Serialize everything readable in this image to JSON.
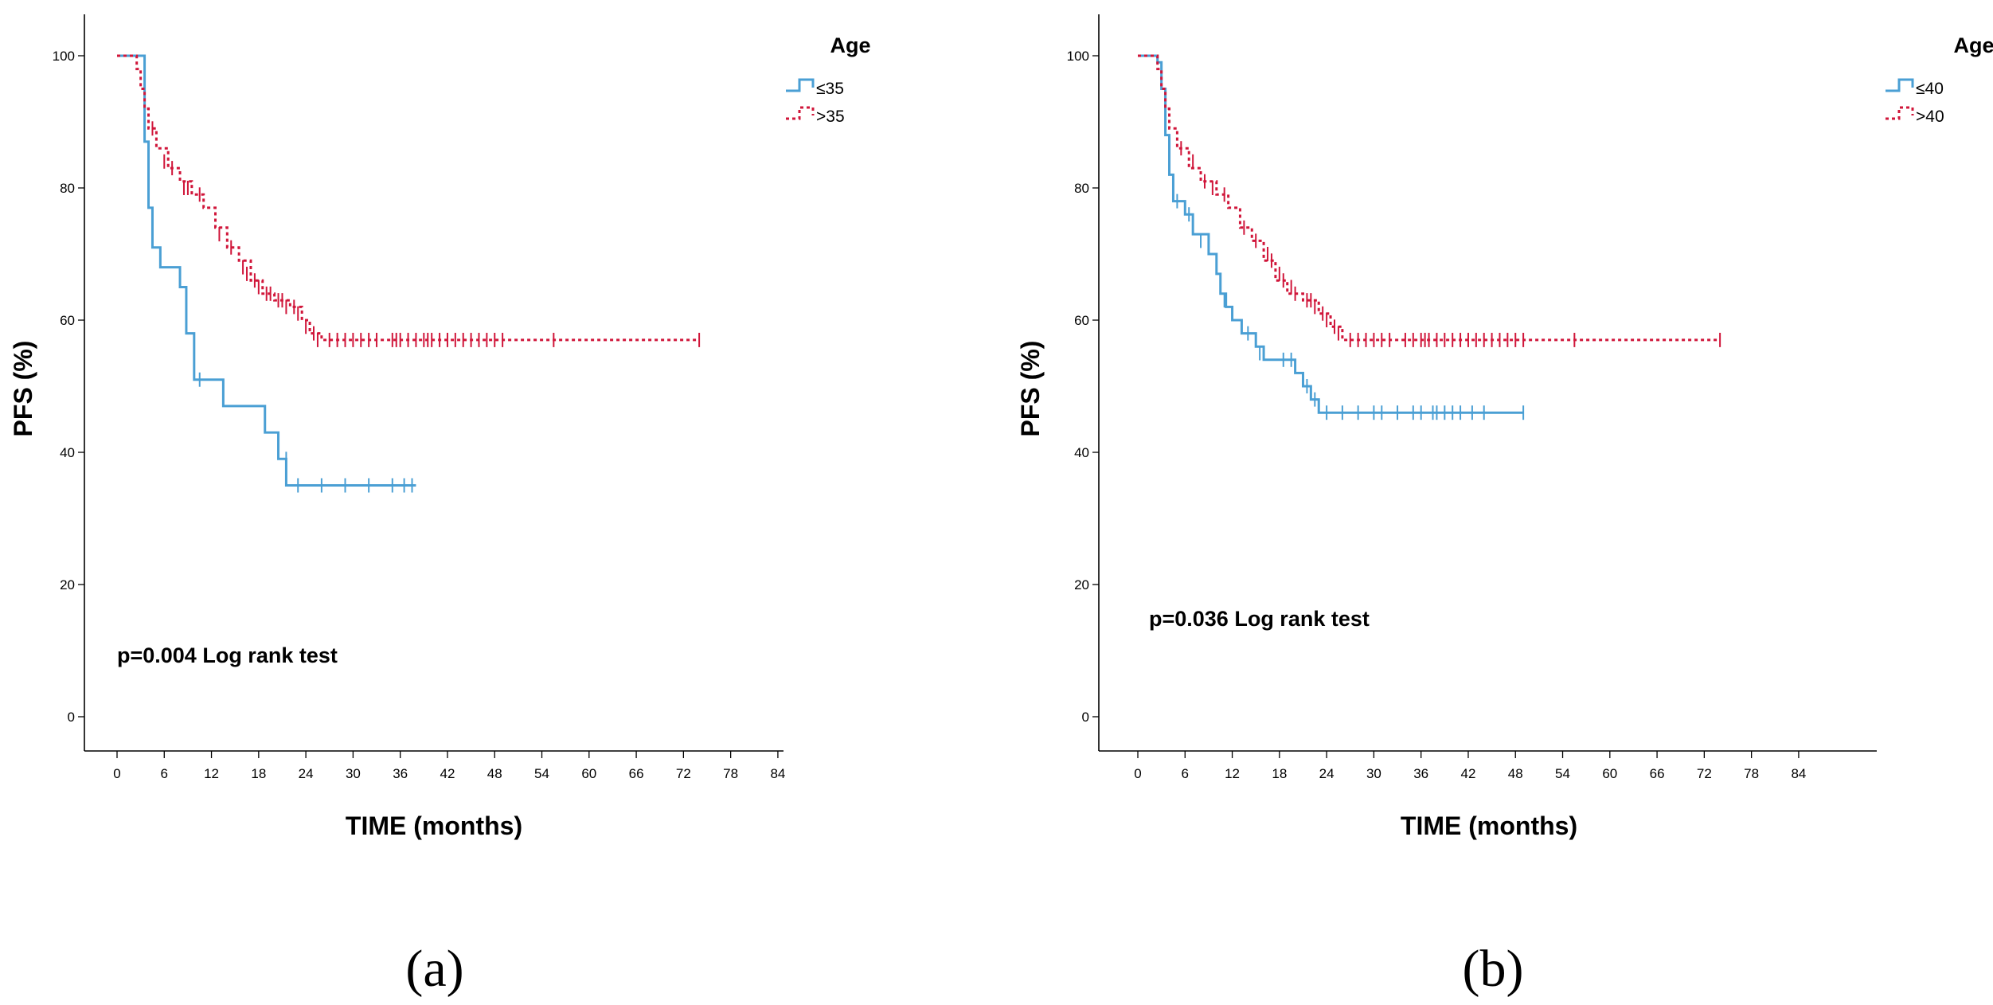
{
  "chart_data": [
    {
      "type": "line",
      "subtype": "kaplan-meier",
      "panel_label": "(a)",
      "xlabel": "TIME (months)",
      "ylabel": "PFS (%)",
      "xlim": [
        0,
        84
      ],
      "ylim": [
        0,
        100
      ],
      "xticks": [
        "0",
        "6",
        "12",
        "18",
        "24",
        "30",
        "36",
        "42",
        "48",
        "54",
        "60",
        "66",
        "72",
        "78",
        "84"
      ],
      "yticks": [
        "0",
        "20",
        "40",
        "60",
        "80",
        "100"
      ],
      "grid": false,
      "legend": {
        "title": "Age",
        "position": "top-right"
      },
      "annotation": "p=0.004 Log rank test",
      "series": [
        {
          "name": "≤35",
          "color": "#4a9fd4",
          "style": "solid",
          "steps": [
            [
              0,
              100
            ],
            [
              3,
              100
            ],
            [
              3.5,
              87
            ],
            [
              4,
              77
            ],
            [
              4.5,
              71
            ],
            [
              5.5,
              68
            ],
            [
              8,
              65
            ],
            [
              8.8,
              58
            ],
            [
              9.8,
              51
            ],
            [
              13.5,
              47
            ],
            [
              18,
              47
            ],
            [
              18.8,
              43
            ],
            [
              20.5,
              39
            ],
            [
              21.5,
              35
            ],
            [
              38,
              35
            ]
          ],
          "censored": [
            [
              10.5,
              51
            ],
            [
              21.5,
              39
            ],
            [
              23,
              35
            ],
            [
              26,
              35
            ],
            [
              29,
              35
            ],
            [
              32,
              35
            ],
            [
              35,
              35
            ],
            [
              36.5,
              35
            ],
            [
              37.5,
              35
            ]
          ]
        },
        {
          "name": ">35",
          "color": "#d0163a",
          "style": "dotted",
          "steps": [
            [
              0,
              100
            ],
            [
              2,
              100
            ],
            [
              2.5,
              98
            ],
            [
              3,
              95
            ],
            [
              3.5,
              92
            ],
            [
              4,
              89
            ],
            [
              5,
              86
            ],
            [
              6.5,
              83
            ],
            [
              8,
              81
            ],
            [
              9.5,
              79
            ],
            [
              11,
              77
            ],
            [
              12.5,
              74
            ],
            [
              14,
              71
            ],
            [
              15.5,
              69
            ],
            [
              17,
              66
            ],
            [
              18.5,
              64
            ],
            [
              20,
              63
            ],
            [
              22,
              62
            ],
            [
              23.5,
              60
            ],
            [
              24.5,
              58
            ],
            [
              26,
              57
            ],
            [
              74,
              57
            ]
          ],
          "censored": [
            [
              4.5,
              89
            ],
            [
              6,
              84
            ],
            [
              7,
              83
            ],
            [
              8.5,
              80
            ],
            [
              9,
              80
            ],
            [
              10.5,
              79
            ],
            [
              13,
              73
            ],
            [
              14.5,
              71
            ],
            [
              16,
              68
            ],
            [
              16.5,
              67
            ],
            [
              17.5,
              66
            ],
            [
              18,
              65
            ],
            [
              19,
              64
            ],
            [
              19.5,
              64
            ],
            [
              20.5,
              63
            ],
            [
              21,
              63
            ],
            [
              21.5,
              62
            ],
            [
              22.5,
              62
            ],
            [
              23,
              61
            ],
            [
              24,
              59
            ],
            [
              25,
              58
            ],
            [
              25.5,
              57
            ],
            [
              27,
              57
            ],
            [
              28,
              57
            ],
            [
              29,
              57
            ],
            [
              30,
              57
            ],
            [
              31,
              57
            ],
            [
              32,
              57
            ],
            [
              33,
              57
            ],
            [
              35,
              57
            ],
            [
              35.5,
              57
            ],
            [
              36,
              57
            ],
            [
              37,
              57
            ],
            [
              38,
              57
            ],
            [
              39,
              57
            ],
            [
              39.5,
              57
            ],
            [
              40,
              57
            ],
            [
              41,
              57
            ],
            [
              42,
              57
            ],
            [
              43,
              57
            ],
            [
              44,
              57
            ],
            [
              45,
              57
            ],
            [
              46,
              57
            ],
            [
              47,
              57
            ],
            [
              48,
              57
            ],
            [
              49,
              57
            ],
            [
              55.5,
              57
            ],
            [
              74,
              57
            ]
          ]
        }
      ]
    },
    {
      "type": "line",
      "subtype": "kaplan-meier",
      "panel_label": "(b)",
      "xlabel": "TIME (months)",
      "ylabel": "PFS (%)",
      "xlim": [
        0,
        84
      ],
      "ylim": [
        0,
        100
      ],
      "xticks": [
        "0",
        "6",
        "12",
        "18",
        "24",
        "30",
        "36",
        "42",
        "48",
        "54",
        "60",
        "66",
        "72",
        "78",
        "84"
      ],
      "yticks": [
        "0",
        "20",
        "40",
        "60",
        "80",
        "100"
      ],
      "grid": false,
      "legend": {
        "title": "Age",
        "position": "top-right"
      },
      "annotation": "p=0.036 Log rank test",
      "series": [
        {
          "name": "≤40",
          "color": "#4a9fd4",
          "style": "solid",
          "steps": [
            [
              0,
              100
            ],
            [
              2,
              100
            ],
            [
              2.5,
              99
            ],
            [
              3,
              95
            ],
            [
              3.5,
              88
            ],
            [
              4,
              82
            ],
            [
              4.5,
              78
            ],
            [
              6,
              76
            ],
            [
              7,
              73
            ],
            [
              9,
              70
            ],
            [
              10,
              67
            ],
            [
              10.5,
              64
            ],
            [
              11.2,
              62
            ],
            [
              12,
              60
            ],
            [
              13.2,
              58
            ],
            [
              15,
              56
            ],
            [
              16,
              54
            ],
            [
              20,
              52
            ],
            [
              21,
              50
            ],
            [
              22,
              48
            ],
            [
              23,
              46
            ],
            [
              49,
              46
            ]
          ],
          "censored": [
            [
              5,
              78
            ],
            [
              6.5,
              76
            ],
            [
              8,
              72
            ],
            [
              11,
              63
            ],
            [
              14,
              58
            ],
            [
              15.5,
              55
            ],
            [
              18.5,
              54
            ],
            [
              19.5,
              54
            ],
            [
              21.5,
              50
            ],
            [
              22.5,
              48
            ],
            [
              24,
              46
            ],
            [
              26,
              46
            ],
            [
              28,
              46
            ],
            [
              30,
              46
            ],
            [
              31,
              46
            ],
            [
              33,
              46
            ],
            [
              35,
              46
            ],
            [
              36,
              46
            ],
            [
              37.5,
              46
            ],
            [
              38,
              46
            ],
            [
              39,
              46
            ],
            [
              40,
              46
            ],
            [
              41,
              46
            ],
            [
              42.5,
              46
            ],
            [
              44,
              46
            ],
            [
              49,
              46
            ]
          ]
        },
        {
          "name": ">40",
          "color": "#d0163a",
          "style": "dotted",
          "steps": [
            [
              0,
              100
            ],
            [
              2,
              100
            ],
            [
              2.5,
              98
            ],
            [
              3,
              95
            ],
            [
              3.5,
              92
            ],
            [
              4,
              89
            ],
            [
              5,
              86
            ],
            [
              6.5,
              83
            ],
            [
              8,
              81
            ],
            [
              10,
              79
            ],
            [
              11.5,
              77
            ],
            [
              13,
              74
            ],
            [
              14.5,
              72
            ],
            [
              16,
              69
            ],
            [
              17.5,
              66
            ],
            [
              19,
              64
            ],
            [
              21,
              63
            ],
            [
              23,
              61
            ],
            [
              24.5,
              59
            ],
            [
              26,
              57
            ],
            [
              74,
              57
            ]
          ],
          "censored": [
            [
              5.5,
              86
            ],
            [
              7,
              84
            ],
            [
              8.5,
              81
            ],
            [
              9.5,
              80
            ],
            [
              11,
              79
            ],
            [
              13.5,
              74
            ],
            [
              15,
              72
            ],
            [
              16.5,
              70
            ],
            [
              17,
              69
            ],
            [
              18,
              67
            ],
            [
              18.5,
              66
            ],
            [
              19.5,
              65
            ],
            [
              20,
              64
            ],
            [
              21.5,
              63
            ],
            [
              22,
              63
            ],
            [
              22.5,
              62
            ],
            [
              23.5,
              61
            ],
            [
              24,
              60
            ],
            [
              25,
              59
            ],
            [
              25.5,
              58
            ],
            [
              27,
              57
            ],
            [
              28,
              57
            ],
            [
              29,
              57
            ],
            [
              30,
              57
            ],
            [
              31,
              57
            ],
            [
              32,
              57
            ],
            [
              34,
              57
            ],
            [
              35,
              57
            ],
            [
              36,
              57
            ],
            [
              36.5,
              57
            ],
            [
              37,
              57
            ],
            [
              38,
              57
            ],
            [
              39,
              57
            ],
            [
              40,
              57
            ],
            [
              41,
              57
            ],
            [
              42,
              57
            ],
            [
              43,
              57
            ],
            [
              44,
              57
            ],
            [
              45,
              57
            ],
            [
              46,
              57
            ],
            [
              47,
              57
            ],
            [
              48,
              57
            ],
            [
              49,
              57
            ],
            [
              55.5,
              57
            ],
            [
              74,
              57
            ]
          ]
        }
      ]
    }
  ]
}
